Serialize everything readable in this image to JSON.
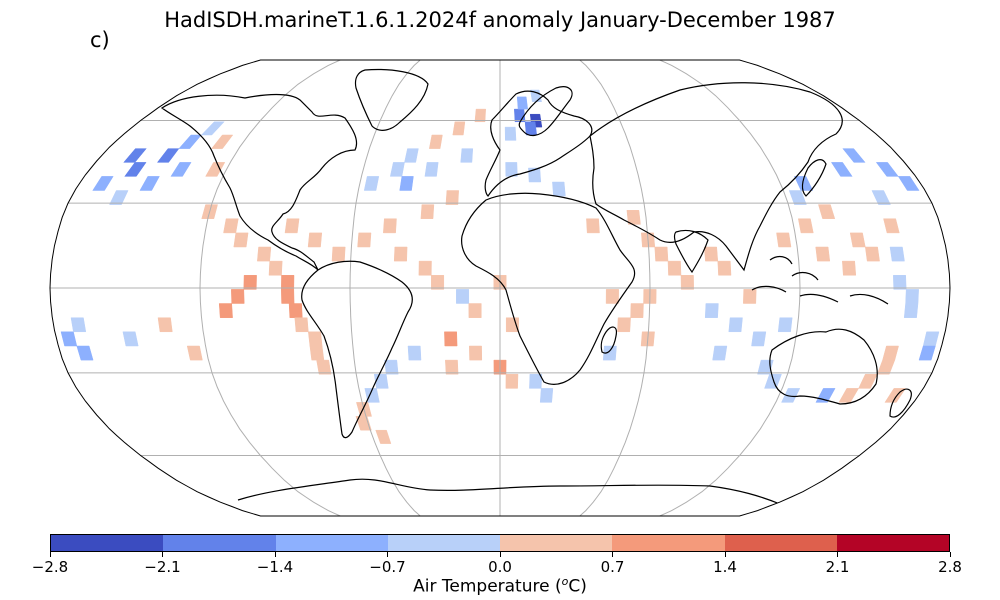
{
  "title": "HadISDH.marineT.1.6.1.2024f anomaly January-December 1987",
  "panel_label": "c)",
  "map": {
    "projection": "Robinson",
    "gridlines": true,
    "ocean_color": "#ffffff",
    "land_color": "#ffffff",
    "coastline_color": "#000000"
  },
  "colorbar": {
    "label_main": "Air Temperature (",
    "label_unit_sup": "o",
    "label_unit": "C)",
    "min": -2.8,
    "max": 2.8,
    "ticks": [
      "−2.8",
      "−2.1",
      "−1.4",
      "−0.7",
      "0.0",
      "0.7",
      "1.4",
      "2.1",
      "2.8"
    ],
    "colors": [
      "#3b4cc0",
      "#6282ea",
      "#8db0fe",
      "#b8d0f9",
      "#f5c4ac",
      "#f49a7b",
      "#de604d",
      "#b40426"
    ]
  },
  "anomaly_cells": [
    {
      "lat": 47,
      "lon": -165,
      "value": -1.5
    },
    {
      "lat": 42,
      "lon": -160,
      "value": -1.8
    },
    {
      "lat": 47,
      "lon": -150,
      "value": -1.6
    },
    {
      "lat": 52,
      "lon": -145,
      "value": -1.1
    },
    {
      "lat": 42,
      "lon": -140,
      "value": -1.2
    },
    {
      "lat": 37,
      "lon": -150,
      "value": -0.9
    },
    {
      "lat": 37,
      "lon": -170,
      "value": -0.8
    },
    {
      "lat": 32,
      "lon": -160,
      "value": -0.5
    },
    {
      "lat": 57,
      "lon": -140,
      "value": -0.4
    },
    {
      "lat": 52,
      "lon": -130,
      "value": 0.3
    },
    {
      "lat": 42,
      "lon": -125,
      "value": 0.4
    },
    {
      "lat": 27,
      "lon": -120,
      "value": 0.3
    },
    {
      "lat": 22,
      "lon": -110,
      "value": 0.4
    },
    {
      "lat": 17,
      "lon": -105,
      "value": 0.5
    },
    {
      "lat": 12,
      "lon": -95,
      "value": 0.5
    },
    {
      "lat": 7,
      "lon": -90,
      "value": 0.6
    },
    {
      "lat": 2,
      "lon": -85,
      "value": 1.0
    },
    {
      "lat": -3,
      "lon": -85,
      "value": 1.0
    },
    {
      "lat": -8,
      "lon": -82,
      "value": 1.1
    },
    {
      "lat": -13,
      "lon": -80,
      "value": 0.6
    },
    {
      "lat": -18,
      "lon": -75,
      "value": 0.4
    },
    {
      "lat": -23,
      "lon": -75,
      "value": 0.4
    },
    {
      "lat": -28,
      "lon": -73,
      "value": 0.3
    },
    {
      "lat": 2,
      "lon": -100,
      "value": 1.1
    },
    {
      "lat": -3,
      "lon": -105,
      "value": 1.0
    },
    {
      "lat": -8,
      "lon": -110,
      "value": 1.0
    },
    {
      "lat": -23,
      "lon": -125,
      "value": 0.4
    },
    {
      "lat": 22,
      "lon": -85,
      "value": 0.4
    },
    {
      "lat": 17,
      "lon": -75,
      "value": 0.4
    },
    {
      "lat": 12,
      "lon": -65,
      "value": 0.4
    },
    {
      "lat": 17,
      "lon": -55,
      "value": 0.4
    },
    {
      "lat": 22,
      "lon": -45,
      "value": 0.3
    },
    {
      "lat": 12,
      "lon": -40,
      "value": 0.4
    },
    {
      "lat": 7,
      "lon": -30,
      "value": 0.4
    },
    {
      "lat": 2,
      "lon": -25,
      "value": 0.4
    },
    {
      "lat": 27,
      "lon": -30,
      "value": 0.4
    },
    {
      "lat": 32,
      "lon": -20,
      "value": 0.3
    },
    {
      "lat": 37,
      "lon": -55,
      "value": -0.3
    },
    {
      "lat": 42,
      "lon": -45,
      "value": -0.4
    },
    {
      "lat": 47,
      "lon": -40,
      "value": -0.3
    },
    {
      "lat": 42,
      "lon": -30,
      "value": -0.4
    },
    {
      "lat": 52,
      "lon": -30,
      "value": 0.3
    },
    {
      "lat": 57,
      "lon": -20,
      "value": 0.4
    },
    {
      "lat": 62,
      "lon": -10,
      "value": 0.3
    },
    {
      "lat": 47,
      "lon": -15,
      "value": -0.4
    },
    {
      "lat": 37,
      "lon": -40,
      "value": -0.8
    },
    {
      "lat": 62,
      "lon": 10,
      "value": -1.9
    },
    {
      "lat": 60,
      "lon": 18,
      "value": -2.2
    },
    {
      "lat": 57,
      "lon": 15,
      "value": -1.6
    },
    {
      "lat": 67,
      "lon": 12,
      "value": -1.0
    },
    {
      "lat": 70,
      "lon": 20,
      "value": -0.5
    },
    {
      "lat": 55,
      "lon": 5,
      "value": -0.5
    },
    {
      "lat": 40,
      "lon": 15,
      "value": -0.4
    },
    {
      "lat": 35,
      "lon": 25,
      "value": -0.3
    },
    {
      "lat": 42,
      "lon": 5,
      "value": -0.3
    },
    {
      "lat": 22,
      "lon": 38,
      "value": 0.4
    },
    {
      "lat": 25,
      "lon": 55,
      "value": 0.4
    },
    {
      "lat": 17,
      "lon": 60,
      "value": 0.4
    },
    {
      "lat": 12,
      "lon": 65,
      "value": 0.4
    },
    {
      "lat": 7,
      "lon": 70,
      "value": 0.4
    },
    {
      "lat": 12,
      "lon": 85,
      "value": 0.4
    },
    {
      "lat": 7,
      "lon": 90,
      "value": 0.4
    },
    {
      "lat": 2,
      "lon": 75,
      "value": 0.4
    },
    {
      "lat": -3,
      "lon": 60,
      "value": 0.4
    },
    {
      "lat": -8,
      "lon": 55,
      "value": 0.4
    },
    {
      "lat": -13,
      "lon": 50,
      "value": 0.4
    },
    {
      "lat": -3,
      "lon": 45,
      "value": 0.4
    },
    {
      "lat": -18,
      "lon": 60,
      "value": 0.3
    },
    {
      "lat": -23,
      "lon": 45,
      "value": -0.4
    },
    {
      "lat": -8,
      "lon": 85,
      "value": -0.3
    },
    {
      "lat": -13,
      "lon": 95,
      "value": -0.3
    },
    {
      "lat": -18,
      "lon": 105,
      "value": -0.4
    },
    {
      "lat": -23,
      "lon": 90,
      "value": -0.3
    },
    {
      "lat": 17,
      "lon": 115,
      "value": 0.4
    },
    {
      "lat": 22,
      "lon": 125,
      "value": 0.4
    },
    {
      "lat": 12,
      "lon": 130,
      "value": 0.4
    },
    {
      "lat": 7,
      "lon": 140,
      "value": 0.4
    },
    {
      "lat": 12,
      "lon": 150,
      "value": 0.4
    },
    {
      "lat": 17,
      "lon": 145,
      "value": 0.4
    },
    {
      "lat": 27,
      "lon": 135,
      "value": 0.4
    },
    {
      "lat": 32,
      "lon": 125,
      "value": -0.5
    },
    {
      "lat": 37,
      "lon": 130,
      "value": -0.8
    },
    {
      "lat": 42,
      "lon": 150,
      "value": -1.2
    },
    {
      "lat": 47,
      "lon": 160,
      "value": -1.1
    },
    {
      "lat": 42,
      "lon": 170,
      "value": -0.9
    },
    {
      "lat": 37,
      "lon": 175,
      "value": -1.0
    },
    {
      "lat": 32,
      "lon": 160,
      "value": -0.4
    },
    {
      "lat": 22,
      "lon": 160,
      "value": 0.3
    },
    {
      "lat": 12,
      "lon": 160,
      "value": -0.3
    },
    {
      "lat": 2,
      "lon": 160,
      "value": -0.5
    },
    {
      "lat": -3,
      "lon": 165,
      "value": -0.4
    },
    {
      "lat": -8,
      "lon": 165,
      "value": -0.3
    },
    {
      "lat": -18,
      "lon": 175,
      "value": -0.4
    },
    {
      "lat": -23,
      "lon": 160,
      "value": 0.4
    },
    {
      "lat": -28,
      "lon": 160,
      "value": 0.4
    },
    {
      "lat": -33,
      "lon": 155,
      "value": 0.5
    },
    {
      "lat": -38,
      "lon": 150,
      "value": 0.4
    },
    {
      "lat": -38,
      "lon": 170,
      "value": 0.3
    },
    {
      "lat": -23,
      "lon": 175,
      "value": -1.2
    },
    {
      "lat": -18,
      "lon": -175,
      "value": -1.0
    },
    {
      "lat": -23,
      "lon": -170,
      "value": -0.8
    },
    {
      "lat": -13,
      "lon": -170,
      "value": -0.4
    },
    {
      "lat": -18,
      "lon": -150,
      "value": -0.4
    },
    {
      "lat": -13,
      "lon": -135,
      "value": 0.4
    },
    {
      "lat": -38,
      "lon": 140,
      "value": -1.0
    },
    {
      "lat": -38,
      "lon": 125,
      "value": -0.4
    },
    {
      "lat": -33,
      "lon": 115,
      "value": -0.4
    },
    {
      "lat": -28,
      "lon": 110,
      "value": -0.3
    },
    {
      "lat": -13,
      "lon": 115,
      "value": -0.3
    },
    {
      "lat": -3,
      "lon": 100,
      "value": 0.4
    },
    {
      "lat": -28,
      "lon": -45,
      "value": -0.3
    },
    {
      "lat": -33,
      "lon": -50,
      "value": -0.3
    },
    {
      "lat": -38,
      "lon": -55,
      "value": -0.3
    },
    {
      "lat": -43,
      "lon": -60,
      "value": 0.3
    },
    {
      "lat": -48,
      "lon": -62,
      "value": 0.4
    },
    {
      "lat": -53,
      "lon": -55,
      "value": 0.4
    },
    {
      "lat": -23,
      "lon": -35,
      "value": -0.4
    },
    {
      "lat": -28,
      "lon": -20,
      "value": 0.4
    },
    {
      "lat": -23,
      "lon": -10,
      "value": 0.4
    },
    {
      "lat": -18,
      "lon": -20,
      "value": 1.1
    },
    {
      "lat": -28,
      "lon": 0,
      "value": 1.0
    },
    {
      "lat": -33,
      "lon": 5,
      "value": 0.4
    },
    {
      "lat": -33,
      "lon": 15,
      "value": -0.4
    },
    {
      "lat": -38,
      "lon": 20,
      "value": -0.3
    },
    {
      "lat": -3,
      "lon": -15,
      "value": -0.4
    },
    {
      "lat": -8,
      "lon": -10,
      "value": 0.4
    },
    {
      "lat": -13,
      "lon": 5,
      "value": 0.4
    },
    {
      "lat": 2,
      "lon": 0,
      "value": 0.4
    }
  ]
}
